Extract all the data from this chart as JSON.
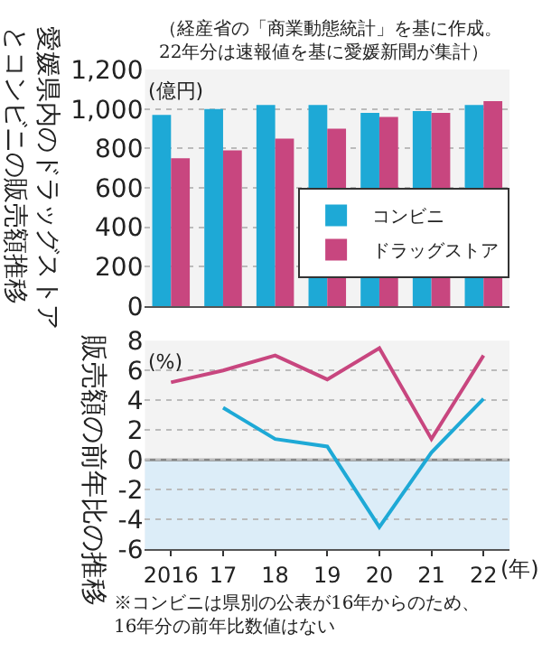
{
  "chart_data": [
    {
      "type": "bar",
      "title": "愛媛県内のドラッグストアとコンビニの販売額推移",
      "subtitle": "（経産省の「商業動態統計」を基に作成。\n22年分は速報値を基に愛媛新聞が集計）",
      "ylabel": "(億円)",
      "categories": [
        "2016",
        "17",
        "18",
        "19",
        "20",
        "21",
        "22"
      ],
      "series": [
        {
          "name": "コンビニ",
          "color": "#1ea9d6",
          "values": [
            970,
            1000,
            1020,
            1020,
            980,
            990,
            1020
          ]
        },
        {
          "name": "ドラッグストア",
          "color": "#c8467f",
          "values": [
            750,
            790,
            850,
            900,
            960,
            980,
            1040
          ]
        }
      ],
      "ylim": [
        0,
        1200
      ],
      "yticks": [
        {
          "value": 0,
          "label": "0"
        },
        {
          "value": 200,
          "label": "200"
        },
        {
          "value": 400,
          "label": "400"
        },
        {
          "value": 600,
          "label": "600"
        },
        {
          "value": 800,
          "label": "800"
        },
        {
          "value": 1000,
          "label": "1,000"
        },
        {
          "value": 1200,
          "label": "1,200"
        }
      ],
      "grid": "y",
      "legend": "bottom right",
      "tick_labels": "y"
    },
    {
      "type": "line",
      "title": "販売額の前年比の推移",
      "ylabel": "(%)",
      "xlabel": "(年)",
      "categories": [
        "2016",
        "17",
        "18",
        "19",
        "20",
        "21",
        "22"
      ],
      "series": [
        {
          "color": "#c8467f",
          "values": [
            5.2,
            6.0,
            7.0,
            5.4,
            7.5,
            1.4,
            7.0
          ]
        },
        {
          "color": "#1ea9d6",
          "values": [
            null,
            3.5,
            1.4,
            0.9,
            -4.5,
            0.5,
            4.1
          ]
        }
      ],
      "ylim": [
        -6,
        8
      ],
      "yticks": [
        -6,
        -4,
        -2,
        0,
        2,
        4,
        6,
        8
      ],
      "grid": "y",
      "legend": false,
      "marker": "none",
      "line_style": "solid",
      "ref_lines": [
        {
          "axis": "y",
          "value": 0,
          "color": "#888888"
        }
      ],
      "bands": [
        {
          "axis": "y",
          "from": -6,
          "to": 0,
          "color": "#dcedf8"
        }
      ],
      "annotations": [
        "※コンビニは県別の公表が16年からのため、\n16年分の前年比数値はない"
      ]
    }
  ]
}
